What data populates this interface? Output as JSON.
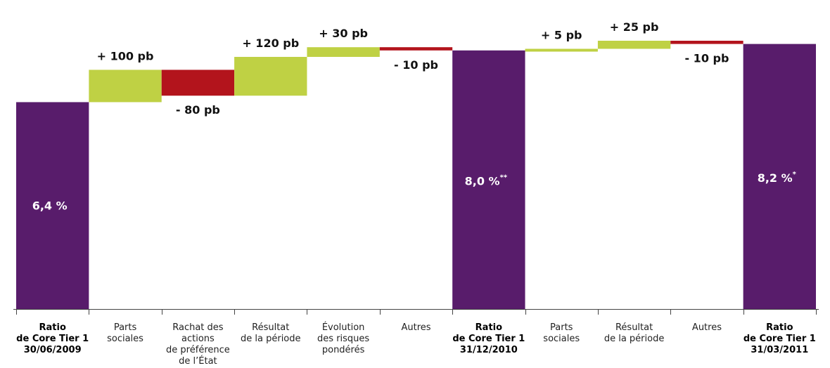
{
  "colors": {
    "total": "#581c6b",
    "increase": "#bfd144",
    "decrease": "#b3141c",
    "axis": "#444444"
  },
  "chart_data": {
    "type": "bar",
    "subtype": "waterfall",
    "unit": "pb",
    "ylim": [
      0,
      8.3
    ],
    "grid": false,
    "legend": "none",
    "categories": [
      [
        "Ratio",
        "de Core Tier 1",
        "30/06/2009"
      ],
      [
        "Parts",
        "sociales"
      ],
      [
        "Rachat des",
        "actions",
        "de préférence",
        "de l’État"
      ],
      [
        "Résultat",
        "de la période"
      ],
      [
        "Évolution",
        "des risques",
        "pondérés"
      ],
      [
        "Autres"
      ],
      [
        "Ratio",
        "de Core Tier 1",
        "31/12/2010"
      ],
      [
        "Parts",
        "sociales"
      ],
      [
        "Résultat",
        "de la période"
      ],
      [
        "Autres"
      ],
      [
        "Ratio",
        "de Core Tier 1",
        "31/03/2011"
      ]
    ],
    "steps": [
      {
        "kind": "total",
        "value": 6.4,
        "label": "6,4 %",
        "sup": ""
      },
      {
        "kind": "delta",
        "value": 1.0,
        "label": "+ 100 pb"
      },
      {
        "kind": "delta",
        "value": -0.8,
        "label": "- 80 pb"
      },
      {
        "kind": "delta",
        "value": 1.2,
        "label": "+ 120 pb"
      },
      {
        "kind": "delta",
        "value": 0.3,
        "label": "+ 30 pb"
      },
      {
        "kind": "delta",
        "value": -0.1,
        "label": "- 10 pb"
      },
      {
        "kind": "total",
        "value": 8.0,
        "label": "8,0 %",
        "sup": "**"
      },
      {
        "kind": "delta",
        "value": 0.05,
        "label": "+ 5 pb"
      },
      {
        "kind": "delta",
        "value": 0.25,
        "label": "+ 25 pb"
      },
      {
        "kind": "delta",
        "value": -0.1,
        "label": "- 10 pb"
      },
      {
        "kind": "total",
        "value": 8.2,
        "label": "8,2 %",
        "sup": "*"
      }
    ]
  }
}
